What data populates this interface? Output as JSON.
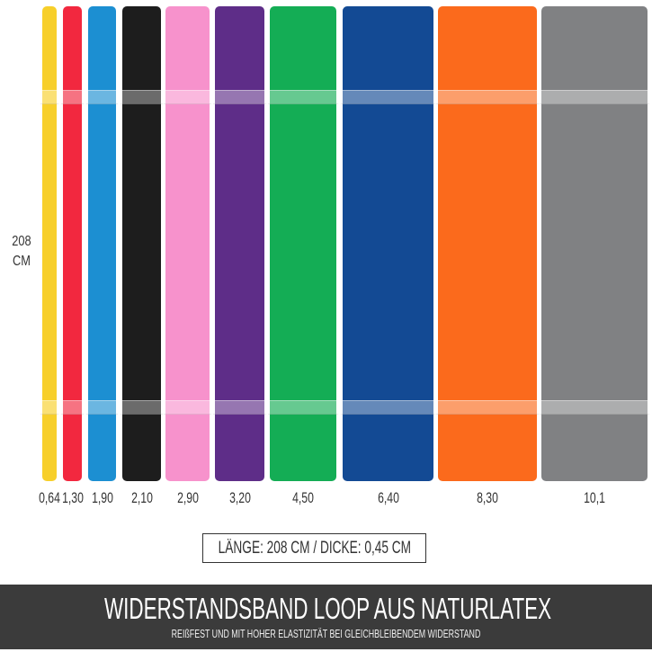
{
  "length_label": {
    "value": "208",
    "unit": "CM"
  },
  "bands": [
    {
      "color": "#f7cf2a",
      "strength": "0,64"
    },
    {
      "color": "#f2283f",
      "strength": "1,30"
    },
    {
      "color": "#1c8fd2",
      "strength": "1,90"
    },
    {
      "color": "#1d1d1d",
      "strength": "2,10"
    },
    {
      "color": "#f792cc",
      "strength": "2,90"
    },
    {
      "color": "#5e2d88",
      "strength": "3,20"
    },
    {
      "color": "#14ad55",
      "strength": "4,50"
    },
    {
      "color": "#134a94",
      "strength": "6,40"
    },
    {
      "color": "#fb6a1c",
      "strength": "8,30"
    },
    {
      "color": "#808183",
      "strength": "10,1"
    }
  ],
  "spec_box": "LÄNGE: 208 CM / DICKE: 0,45 CM",
  "banner": {
    "title": "WIDERSTANDSBAND LOOP AUS NATURLATEX",
    "subtitle": "REIßFEST UND MIT HOHER ELASTIZITÄT BEI GLEICHBLEIBENDEM WIDERSTAND"
  }
}
